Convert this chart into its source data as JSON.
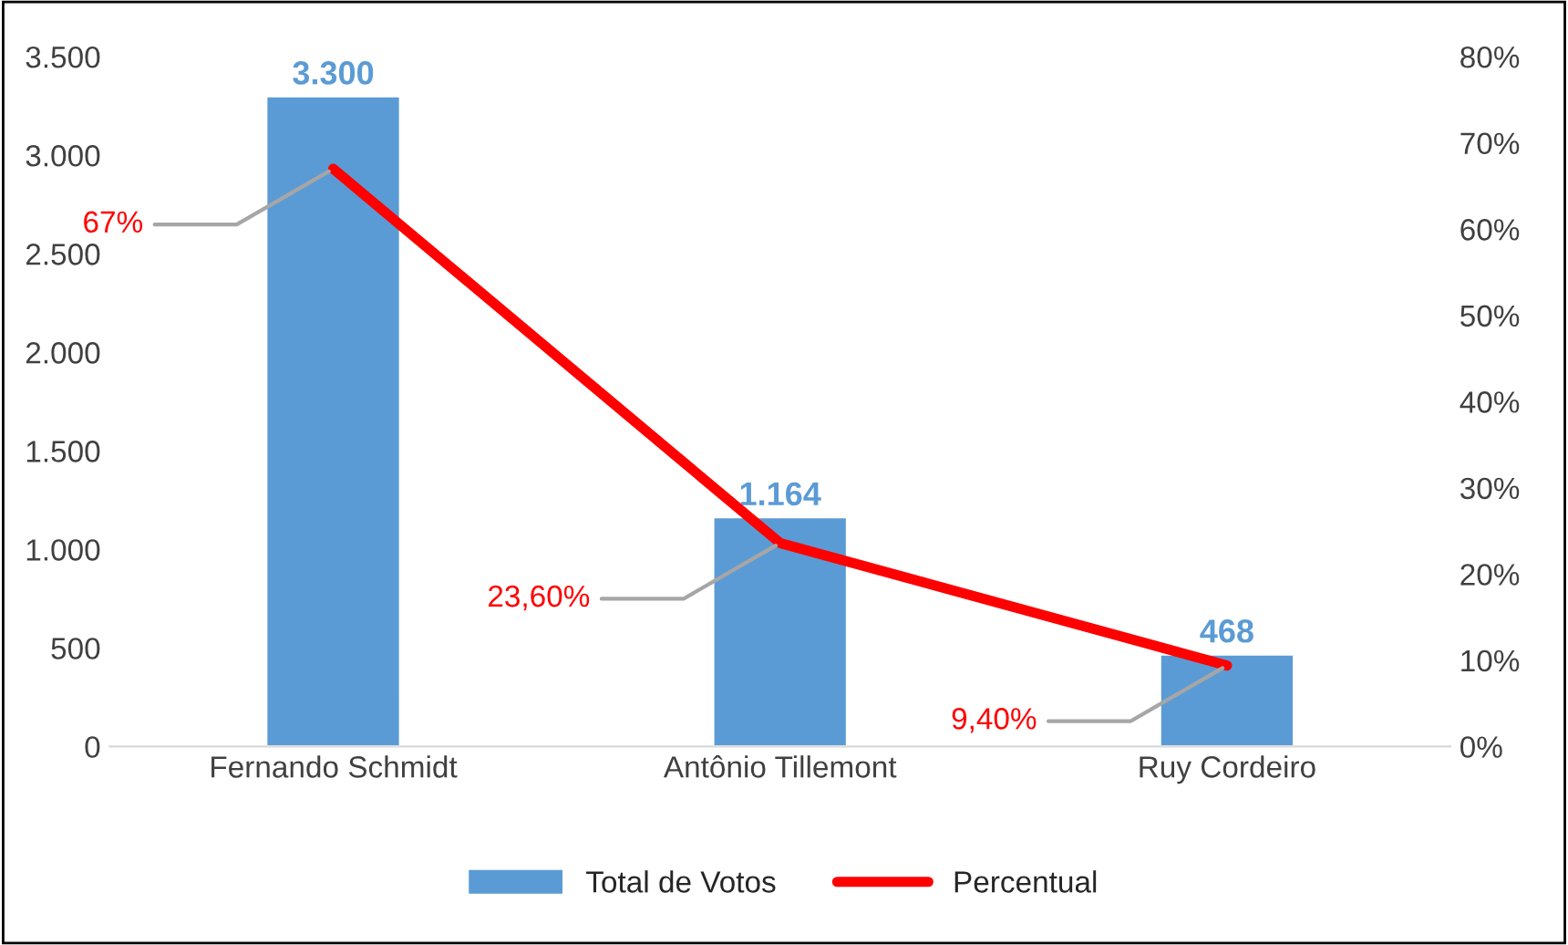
{
  "chart_data": {
    "type": "bar",
    "categories": [
      "Fernando Schmidt",
      "Antônio Tillemont",
      "Ruy Cordeiro"
    ],
    "series": [
      {
        "name": "Total de Votos",
        "color": "#5b9bd5",
        "values": [
          3300,
          1164,
          468
        ],
        "value_labels": [
          "3.300",
          "1.164",
          "468"
        ]
      },
      {
        "name": "Percentual",
        "type": "line",
        "axis": "y2",
        "color": "#ff0000",
        "values": [
          67,
          23.6,
          9.4
        ],
        "value_labels": [
          "67%",
          "23,60%",
          "9,40%"
        ]
      }
    ],
    "ylim": [
      0,
      3500
    ],
    "yticks": [
      {
        "value": 0,
        "label": "0"
      },
      {
        "value": 500,
        "label": "500"
      },
      {
        "value": 1000,
        "label": "1.000"
      },
      {
        "value": 1500,
        "label": "1.500"
      },
      {
        "value": 2000,
        "label": "2.000"
      },
      {
        "value": 2500,
        "label": "2.500"
      },
      {
        "value": 3000,
        "label": "3.000"
      },
      {
        "value": 3500,
        "label": "3.500"
      }
    ],
    "y2lim": [
      0,
      80
    ],
    "y2ticks": [
      {
        "value": 0,
        "label": "0%"
      },
      {
        "value": 10,
        "label": "10%"
      },
      {
        "value": 20,
        "label": "20%"
      },
      {
        "value": 30,
        "label": "30%"
      },
      {
        "value": 40,
        "label": "40%"
      },
      {
        "value": 50,
        "label": "50%"
      },
      {
        "value": 60,
        "label": "60%"
      },
      {
        "value": 70,
        "label": "70%"
      },
      {
        "value": 80,
        "label": "80%"
      }
    ],
    "legend": "bottom",
    "grid": false,
    "marker": "none",
    "line_style": "solid"
  }
}
